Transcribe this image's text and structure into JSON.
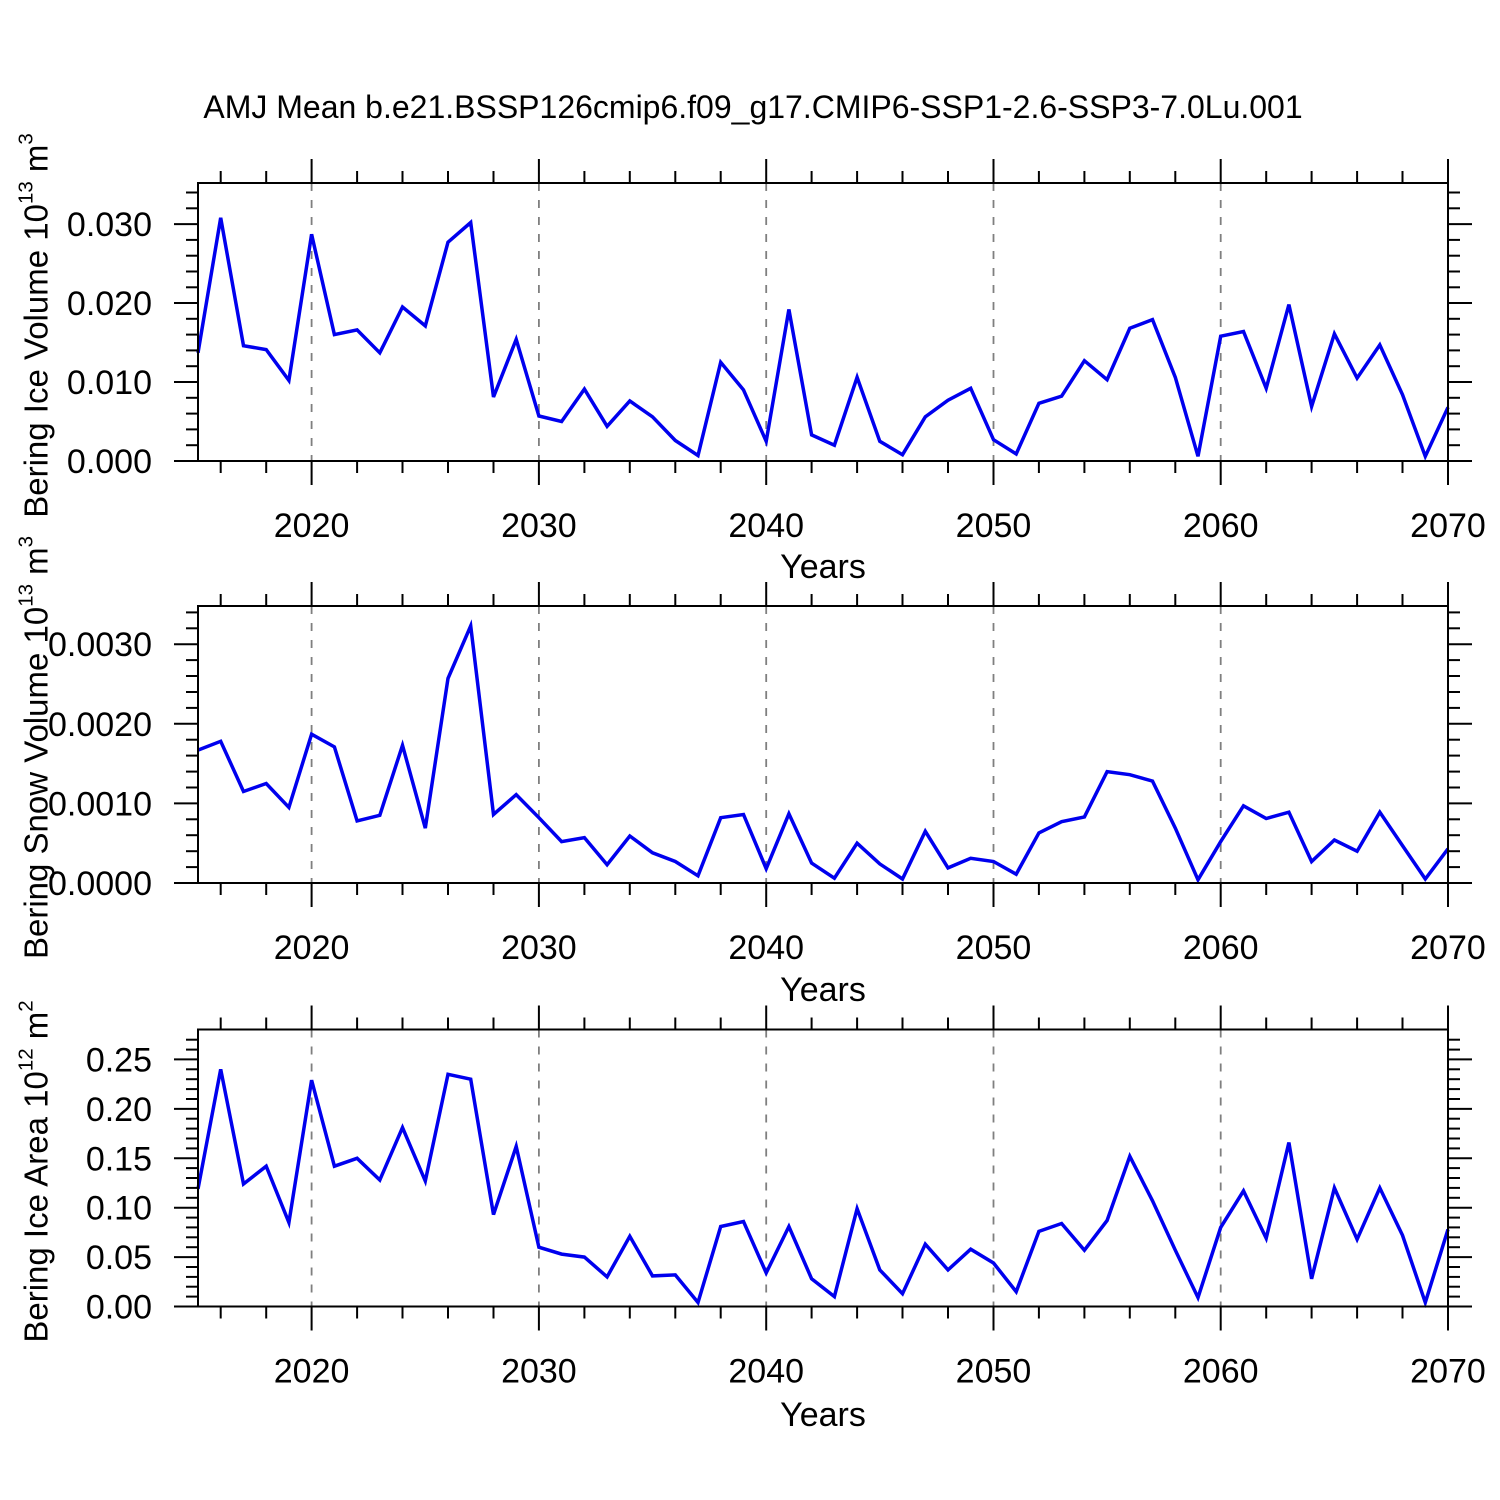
{
  "title": "AMJ Mean b.e21.BSSP126cmip6.f09_g17.CMIP6-SSP1-2.6-SSP3-7.0Lu.001",
  "line_color": "#0000EE",
  "grid_color": "#7F7F7F",
  "axis_color": "#000000",
  "chart_data": [
    {
      "type": "line",
      "name": "bering-ice-volume",
      "ylabel_text": "Bering Ice Volume 10",
      "ylabel_sup1": "13",
      "ylabel_mid": " m",
      "ylabel_sup2": "3",
      "xlabel": "Years",
      "xlim": [
        2015,
        2070
      ],
      "ylim": [
        0,
        0.0352
      ],
      "x": [
        2015,
        2016,
        2017,
        2018,
        2019,
        2020,
        2021,
        2022,
        2023,
        2024,
        2025,
        2026,
        2027,
        2028,
        2029,
        2030,
        2031,
        2032,
        2033,
        2034,
        2035,
        2036,
        2037,
        2038,
        2039,
        2040,
        2041,
        2042,
        2043,
        2044,
        2045,
        2046,
        2047,
        2048,
        2049,
        2050,
        2051,
        2052,
        2053,
        2054,
        2055,
        2056,
        2057,
        2058,
        2059,
        2060,
        2061,
        2062,
        2063,
        2064,
        2065,
        2066,
        2067,
        2068,
        2069,
        2070
      ],
      "values": [
        0.0137,
        0.0308,
        0.0146,
        0.0141,
        0.0102,
        0.0287,
        0.016,
        0.0166,
        0.0137,
        0.0195,
        0.0171,
        0.0277,
        0.0302,
        0.0081,
        0.0154,
        0.0057,
        0.005,
        0.0091,
        0.0044,
        0.0076,
        0.0056,
        0.0026,
        0.0007,
        0.0125,
        0.009,
        0.0025,
        0.0192,
        0.0033,
        0.002,
        0.0106,
        0.0025,
        0.0008,
        0.0056,
        0.0077,
        0.0092,
        0.0027,
        0.0009,
        0.0073,
        0.0082,
        0.0127,
        0.0103,
        0.0168,
        0.0179,
        0.0106,
        0.0006,
        0.0158,
        0.0164,
        0.0092,
        0.0198,
        0.0069,
        0.0161,
        0.0105,
        0.0147,
        0.0084,
        0.0006,
        0.0068
      ],
      "yticks": {
        "values": [
          0.0,
          0.01,
          0.02,
          0.03
        ],
        "labels": [
          "0.000",
          "0.010",
          "0.020",
          "0.030"
        ],
        "minor_step": 0.002
      },
      "xticks": {
        "values": [
          2020,
          2030,
          2040,
          2050,
          2060,
          2070
        ],
        "labels": [
          "2020",
          "2030",
          "2040",
          "2050",
          "2060",
          "2070"
        ],
        "minor_step": 2
      },
      "gridlines_x": [
        2020,
        2030,
        2040,
        2050,
        2060
      ],
      "grid": "vertical-dashed",
      "legend": "none"
    },
    {
      "type": "line",
      "name": "bering-snow-volume",
      "ylabel_text": "Bering Snow Volume 10",
      "ylabel_sup1": "13",
      "ylabel_mid": " m",
      "ylabel_sup2": "3",
      "xlabel": "Years",
      "xlim": [
        2015,
        2070
      ],
      "ylim": [
        0,
        0.00348
      ],
      "x": [
        2015,
        2016,
        2017,
        2018,
        2019,
        2020,
        2021,
        2022,
        2023,
        2024,
        2025,
        2026,
        2027,
        2028,
        2029,
        2030,
        2031,
        2032,
        2033,
        2034,
        2035,
        2036,
        2037,
        2038,
        2039,
        2040,
        2041,
        2042,
        2043,
        2044,
        2045,
        2046,
        2047,
        2048,
        2049,
        2050,
        2051,
        2052,
        2053,
        2054,
        2055,
        2056,
        2057,
        2058,
        2059,
        2060,
        2061,
        2062,
        2063,
        2064,
        2065,
        2066,
        2067,
        2068,
        2069,
        2070
      ],
      "values": [
        0.00167,
        0.00178,
        0.00115,
        0.00125,
        0.00095,
        0.00187,
        0.00171,
        0.00078,
        0.00085,
        0.00173,
        0.00069,
        0.00257,
        0.00323,
        0.00086,
        0.00111,
        0.00082,
        0.00052,
        0.00057,
        0.00023,
        0.00059,
        0.00038,
        0.00027,
        9e-05,
        0.00082,
        0.00086,
        0.00018,
        0.00087,
        0.00025,
        6e-05,
        0.0005,
        0.00024,
        5e-05,
        0.00065,
        0.00019,
        0.00031,
        0.00027,
        0.00011,
        0.00063,
        0.00077,
        0.00083,
        0.0014,
        0.00136,
        0.00128,
        0.00069,
        4e-05,
        0.00052,
        0.00097,
        0.00081,
        0.00089,
        0.00027,
        0.00054,
        0.0004,
        0.00089,
        0.00047,
        5e-05,
        0.00043
      ],
      "yticks": {
        "values": [
          0.0,
          0.001,
          0.002,
          0.003
        ],
        "labels": [
          "0.0000",
          "0.0010",
          "0.0020",
          "0.0030"
        ],
        "minor_step": 0.0002
      },
      "xticks": {
        "values": [
          2020,
          2030,
          2040,
          2050,
          2060,
          2070
        ],
        "labels": [
          "2020",
          "2030",
          "2040",
          "2050",
          "2060",
          "2070"
        ],
        "minor_step": 2
      },
      "gridlines_x": [
        2020,
        2030,
        2040,
        2050,
        2060
      ],
      "grid": "vertical-dashed",
      "legend": "none"
    },
    {
      "type": "line",
      "name": "bering-ice-area",
      "ylabel_text": "Bering Ice Area 10",
      "ylabel_sup1": "12",
      "ylabel_mid": " m",
      "ylabel_sup2": "2",
      "xlabel": "Years",
      "xlim": [
        2015,
        2070
      ],
      "ylim": [
        0,
        0.2803
      ],
      "x": [
        2015,
        2016,
        2017,
        2018,
        2019,
        2020,
        2021,
        2022,
        2023,
        2024,
        2025,
        2026,
        2027,
        2028,
        2029,
        2030,
        2031,
        2032,
        2033,
        2034,
        2035,
        2036,
        2037,
        2038,
        2039,
        2040,
        2041,
        2042,
        2043,
        2044,
        2045,
        2046,
        2047,
        2048,
        2049,
        2050,
        2051,
        2052,
        2053,
        2054,
        2055,
        2056,
        2057,
        2058,
        2059,
        2060,
        2061,
        2062,
        2063,
        2064,
        2065,
        2066,
        2067,
        2068,
        2069,
        2070
      ],
      "values": [
        0.119,
        0.24,
        0.124,
        0.142,
        0.085,
        0.229,
        0.142,
        0.15,
        0.128,
        0.181,
        0.127,
        0.235,
        0.23,
        0.093,
        0.162,
        0.06,
        0.053,
        0.05,
        0.03,
        0.071,
        0.031,
        0.032,
        0.004,
        0.081,
        0.086,
        0.034,
        0.081,
        0.028,
        0.01,
        0.099,
        0.037,
        0.013,
        0.063,
        0.037,
        0.058,
        0.044,
        0.015,
        0.076,
        0.084,
        0.057,
        0.087,
        0.152,
        0.107,
        0.057,
        0.009,
        0.08,
        0.117,
        0.069,
        0.166,
        0.028,
        0.12,
        0.068,
        0.12,
        0.072,
        0.004,
        0.078
      ],
      "yticks": {
        "values": [
          0.0,
          0.05,
          0.1,
          0.15,
          0.2,
          0.25
        ],
        "labels": [
          "0.00",
          "0.05",
          "0.10",
          "0.15",
          "0.20",
          "0.25"
        ],
        "minor_step": 0.01
      },
      "xticks": {
        "values": [
          2020,
          2030,
          2040,
          2050,
          2060,
          2070
        ],
        "labels": [
          "2020",
          "2030",
          "2040",
          "2050",
          "2060",
          "2070"
        ],
        "minor_step": 2
      },
      "gridlines_x": [
        2020,
        2030,
        2040,
        2050,
        2060
      ],
      "grid": "vertical-dashed",
      "legend": "none"
    }
  ]
}
